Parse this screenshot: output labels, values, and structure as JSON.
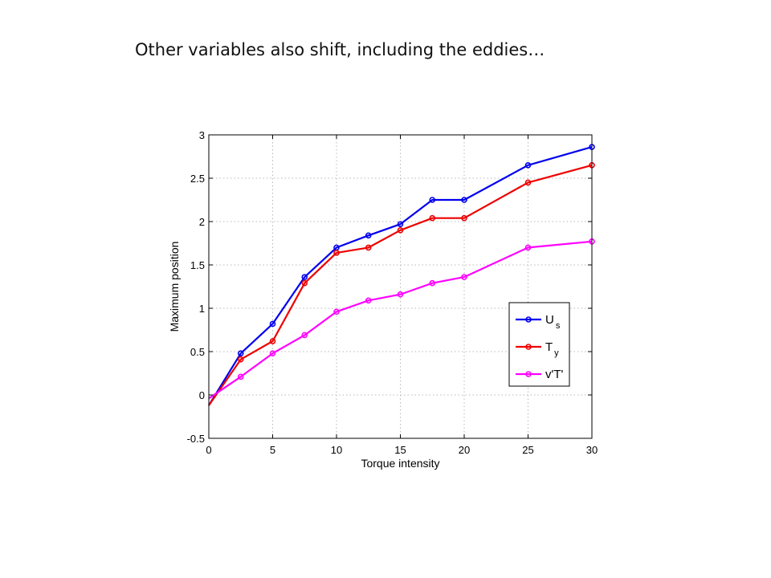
{
  "slide": {
    "title": "Other variables also shift, including the eddies…"
  },
  "chart_data": {
    "type": "line",
    "xlabel": "Torque intensity",
    "ylabel": "Maximum position",
    "xlim": [
      0,
      30
    ],
    "ylim": [
      -0.5,
      3
    ],
    "xticks": [
      0,
      5,
      10,
      15,
      20,
      25,
      30
    ],
    "yticks": [
      -0.5,
      0,
      0.5,
      1,
      1.5,
      2,
      2.5,
      3
    ],
    "xtick_labels": [
      "0",
      "5",
      "10",
      "15",
      "20",
      "25",
      "30"
    ],
    "ytick_labels": [
      "-0.5",
      "0",
      "0.5",
      "1",
      "1.5",
      "2",
      "2.5",
      "3"
    ],
    "grid": true,
    "legend_position": "right",
    "x": [
      0,
      2.5,
      5,
      7.5,
      10,
      12.5,
      15,
      17.5,
      20,
      25,
      30
    ],
    "series": [
      {
        "name": "U",
        "name_sub": "s",
        "color": "#0000ee",
        "values": [
          -0.12,
          0.48,
          0.82,
          1.36,
          1.7,
          1.84,
          1.97,
          2.25,
          2.25,
          2.65,
          2.86
        ]
      },
      {
        "name": "T",
        "name_sub": "y",
        "color": "#ee0000",
        "values": [
          -0.12,
          0.41,
          0.62,
          1.29,
          1.64,
          1.7,
          1.9,
          2.04,
          2.04,
          2.45,
          2.65
        ]
      },
      {
        "name": "v'T'",
        "name_sub": "",
        "color": "#ff00ff",
        "values": [
          -0.04,
          0.21,
          0.48,
          0.69,
          0.96,
          1.09,
          1.16,
          1.29,
          1.36,
          1.7,
          1.77
        ]
      }
    ]
  }
}
